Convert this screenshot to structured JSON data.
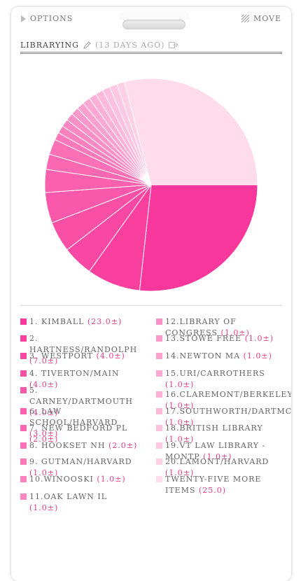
{
  "topbar": {
    "options_label": "OPTIONS",
    "move_label": "MOVE"
  },
  "header": {
    "title": "LIBRARYING",
    "ago": "(13 DAYS AGO)"
  },
  "chart_data": {
    "type": "pie",
    "series": [
      {
        "label": "1. KIMBALL",
        "value": 23.0
      },
      {
        "label": "2. HARTNESS/RANDOLPH",
        "value": 7.0
      },
      {
        "label": "3. WESTPORT",
        "value": 4.0
      },
      {
        "label": "4. TIVERTON/MAIN",
        "value": 4.0
      },
      {
        "label": "5. CARNEY/DARTMOUTH",
        "value": 4.0
      },
      {
        "label": "6. LAW SCHOOL/HARVARD",
        "value": 3.0
      },
      {
        "label": "7. NEW BEDFORD PL",
        "value": 2.0
      },
      {
        "label": "8. HOOKSET NH",
        "value": 2.0
      },
      {
        "label": "9. GUTMAN/HARVARD",
        "value": 1.0
      },
      {
        "label": "10.WINOOSKI",
        "value": 1.0
      },
      {
        "label": "11.OAK LAWN IL",
        "value": 1.0
      },
      {
        "label": "12.LIBRARY OF CONGRESS",
        "value": 1.0
      },
      {
        "label": "13.STOWE FREE",
        "value": 1.0
      },
      {
        "label": "14.NEWTON MA",
        "value": 1.0
      },
      {
        "label": "15.URI/CARROTHERS",
        "value": 1.0
      },
      {
        "label": "16.CLAREMONT/BERKELEY",
        "value": 1.0
      },
      {
        "label": "17.SOUTHWORTH/DARTMC",
        "value": 1.0
      },
      {
        "label": "18.BRITISH LIBRARY",
        "value": 1.0
      },
      {
        "label": "19.VT LAW LIBRARY - MONTP",
        "value": 1.0
      },
      {
        "label": "20.LAMONT/HARVARD",
        "value": 1.0
      },
      {
        "label": "TWENTY-FIVE MORE ITEMS",
        "value": 25.0
      }
    ]
  },
  "legend": {
    "left": [
      {
        "label": "1. KIMBALL",
        "val": "(23.0±)",
        "color": "#f8379d"
      },
      {
        "label": "2. HARTNESS/RANDOLPH",
        "val": "(7.0±)",
        "color": "#f9409f"
      },
      {
        "label": "3. WESTPORT",
        "val": "(4.0±)",
        "color": "#f948a3"
      },
      {
        "label": "4. TIVERTON/MAIN",
        "val": "(4.0±)",
        "color": "#f950a6"
      },
      {
        "label": "5. CARNEY/DARTMOUTH",
        "val": "(4.0±)",
        "color": "#fa58aa"
      },
      {
        "label": "6. LAW SCHOOL/HARVARD",
        "val": "(3.0±)",
        "color": "#fa60ae"
      },
      {
        "label": "7. NEW BEDFORD PL",
        "val": "(2.0±)",
        "color": "#fa68b2"
      },
      {
        "label": "8. HOOKSET NH",
        "val": "(2.0±)",
        "color": "#fb70b6"
      },
      {
        "label": "9. GUTMAN/HARVARD",
        "val": "(1.0±)",
        "color": "#fb78ba"
      },
      {
        "label": "10.WINOOSKI",
        "val": "(1.0±)",
        "color": "#fb80be"
      },
      {
        "label": "11.OAK LAWN IL",
        "val": "(1.0±)",
        "color": "#fb88c2"
      }
    ],
    "right": [
      {
        "label": "12.LIBRARY OF CONGRESS",
        "val": "(1.0±)",
        "color": "#fc90c6"
      },
      {
        "label": "13.STOWE FREE",
        "val": "(1.0±)",
        "color": "#fc98ca"
      },
      {
        "label": "14.NEWTON MA",
        "val": "(1.0±)",
        "color": "#fca0ce"
      },
      {
        "label": "15.URI/CARROTHERS",
        "val": "(1.0±)",
        "color": "#fca8d2"
      },
      {
        "label": "16.CLAREMONT/BERKELEY",
        "val": "(1.0±)",
        "color": "#fdb0d6"
      },
      {
        "label": "17.SOUTHWORTH/DARTMC",
        "val": "(1.0±)",
        "color": "#fdb8da"
      },
      {
        "label": "18.BRITISH LIBRARY",
        "val": "(1.0±)",
        "color": "#fdc0de"
      },
      {
        "label": "19.VT LAW LIBRARY - MONTP",
        "val": "(1.0±)",
        "color": "#fdc8e2"
      },
      {
        "label": "20.LAMONT/HARVARD",
        "val": "(1.0±)",
        "color": "#fed0e6"
      },
      {
        "label": "TWENTY-FIVE MORE ITEMS",
        "val": "(25.0)",
        "color": "#fedcec"
      }
    ]
  }
}
